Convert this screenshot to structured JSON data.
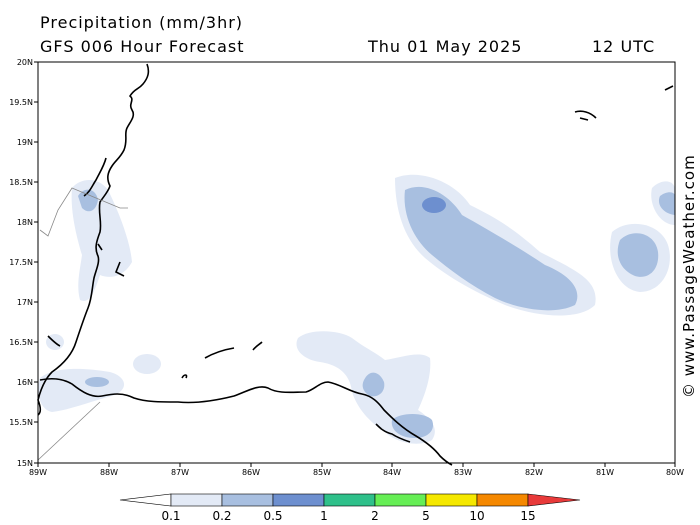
{
  "header": {
    "title": "Precipitation (mm/3hr)",
    "model": "GFS 006 Hour Forecast",
    "date": "Thu 01 May 2025",
    "time": "12 UTC"
  },
  "axes": {
    "lat_labels": [
      "20N",
      "19.5N",
      "19N",
      "18.5N",
      "18N",
      "17.5N",
      "17N",
      "16.5N",
      "16N",
      "15.5N",
      "15N"
    ],
    "lon_labels": [
      "89W",
      "88W",
      "87W",
      "86W",
      "85W",
      "84W",
      "83W",
      "82W",
      "81W",
      "80W"
    ]
  },
  "legend": {
    "labels": [
      "0.1",
      "0.2",
      "0.5",
      "1",
      "2",
      "5",
      "10",
      "15"
    ],
    "colors": [
      "#ffffff",
      "#e3eaf6",
      "#a8bfe0",
      "#6d8fcf",
      "#2fc08a",
      "#66ee55",
      "#f5e800",
      "#f58800",
      "#e83a3a"
    ]
  },
  "precip_colors": {
    "light": "#e3eaf6",
    "medium": "#a8bfe0",
    "heavy": "#6d8fcf"
  },
  "credit": "© www.PassageWeather.com"
}
